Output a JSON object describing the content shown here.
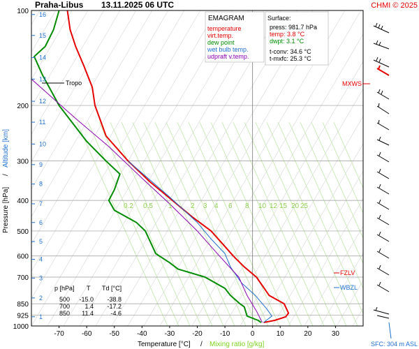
{
  "header": {
    "station": "Praha-Libus",
    "datetime": "13.11.2025 06 UTC",
    "credit": "CHMI © 2025"
  },
  "axes": {
    "ylabel_left": "Pressure [hPa]",
    "ylabel_sep": "/",
    "ylabel_right": "Altitude [km]",
    "xlabel_left": "Temperature [°C]",
    "xlabel_sep": "/",
    "xlabel_right": "Mixing ratio [g/kg]"
  },
  "legend": {
    "title": "EMAGRAM",
    "items": [
      {
        "label": "temperature",
        "color": "#e60000"
      },
      {
        "label": "virt.temp.",
        "color": "#e60000"
      },
      {
        "label": "dew point",
        "color": "#008c00"
      },
      {
        "label": "wet bulb temp.",
        "color": "#1f6fd1"
      },
      {
        "label": "udpraft v.temp.",
        "color": "#8a00b0"
      }
    ]
  },
  "surface": {
    "title": "Surface:",
    "press": "press: 981.7 hPa",
    "temp": "temp: 3.8 °C",
    "dwpt": "dwpt: 3.1 °C",
    "tconv": "t-conv: 34.6 °C",
    "tmxfc": "t-mxfc: 25.3 °C"
  },
  "table": {
    "headers": [
      "p [hPa]",
      "T",
      "Td [°C]"
    ],
    "rows": [
      [
        "500",
        "-15.0",
        "-38.8"
      ],
      [
        "700",
        "1.4",
        "-17.2"
      ],
      [
        "850",
        "11.4",
        "-4.6"
      ]
    ]
  },
  "levels": {
    "tropo": "Tropo",
    "mxws": "MXWS",
    "fzlv": "FZLV",
    "wbzl": "WBZL",
    "sfc": "SFC: 304 m ASL"
  },
  "chart_data": {
    "type": "line",
    "title": "Praha-Libus 13.11.2025 06 UTC",
    "xlabel": "Temperature [°C]",
    "ylabel": "Pressure [hPa]",
    "xlim": [
      -80,
      40
    ],
    "ylim": [
      1000,
      100
    ],
    "y_scale": "log",
    "x_ticks": [
      -70,
      -60,
      -50,
      -40,
      -30,
      -20,
      -10,
      0,
      10,
      20,
      30
    ],
    "p_ticks": [
      100,
      200,
      300,
      400,
      500,
      600,
      700,
      850,
      925,
      1000
    ],
    "km_ticks": [
      {
        "label": "1",
        "p": 935
      },
      {
        "label": "2",
        "p": 815
      },
      {
        "label": "3",
        "p": 705
      },
      {
        "label": "4",
        "p": 615
      },
      {
        "label": "5",
        "p": 540
      },
      {
        "label": "6",
        "p": 470
      },
      {
        "label": "7",
        "p": 410
      },
      {
        "label": "8",
        "p": 355
      },
      {
        "label": "9",
        "p": 308
      },
      {
        "label": "10",
        "p": 265
      },
      {
        "label": "11",
        "p": 226
      },
      {
        "label": "12",
        "p": 194
      },
      {
        "label": "13",
        "p": 165
      },
      {
        "label": "14",
        "p": 141
      },
      {
        "label": "15",
        "p": 120
      },
      {
        "label": "16",
        "p": 103
      }
    ],
    "mixing_ratio_labels": [
      "0.2",
      "0.5",
      "1",
      "2",
      "3",
      "4",
      "6",
      "8",
      "10",
      "12",
      "15",
      "20",
      "25"
    ],
    "series": [
      {
        "name": "temperature",
        "color": "#e60000",
        "points": [
          [
            4,
            975
          ],
          [
            8,
            960
          ],
          [
            12,
            935
          ],
          [
            13,
            910
          ],
          [
            11.4,
            850
          ],
          [
            6,
            800
          ],
          [
            1.4,
            700
          ],
          [
            -3,
            650
          ],
          [
            -7,
            600
          ],
          [
            -10,
            560
          ],
          [
            -15,
            500
          ],
          [
            -22,
            450
          ],
          [
            -29,
            400
          ],
          [
            -37,
            350
          ],
          [
            -45,
            300
          ],
          [
            -53,
            250
          ],
          [
            -57,
            200
          ],
          [
            -58,
            175
          ],
          [
            -61,
            150
          ],
          [
            -64,
            130
          ],
          [
            -66,
            115
          ],
          [
            -67,
            100
          ]
        ]
      },
      {
        "name": "dew point",
        "color": "#008c00",
        "points": [
          [
            3.1,
            975
          ],
          [
            2,
            960
          ],
          [
            -2,
            930
          ],
          [
            -3,
            870
          ],
          [
            -4.6,
            850
          ],
          [
            -8,
            800
          ],
          [
            -10,
            760
          ],
          [
            -17.2,
            700
          ],
          [
            -27,
            660
          ],
          [
            -30,
            630
          ],
          [
            -35,
            590
          ],
          [
            -38.8,
            500
          ],
          [
            -42,
            470
          ],
          [
            -50,
            430
          ],
          [
            -52,
            400
          ],
          [
            -50,
            370
          ],
          [
            -48,
            330
          ],
          [
            -53,
            300
          ],
          [
            -60,
            260
          ],
          [
            -70,
            200
          ],
          [
            -76,
            160
          ],
          [
            -79,
            140
          ],
          [
            -75,
            130
          ],
          [
            -72,
            115
          ],
          [
            -70,
            100
          ]
        ]
      },
      {
        "name": "wet bulb temp.",
        "color": "#1f6fd1",
        "points": [
          [
            4,
            975
          ],
          [
            7,
            930
          ],
          [
            5,
            880
          ],
          [
            1,
            800
          ],
          [
            -4,
            730
          ],
          [
            -8,
            650
          ],
          [
            -10,
            590
          ],
          [
            -15,
            530
          ],
          [
            -20,
            470
          ],
          [
            -30,
            390
          ],
          [
            -45,
            300
          ]
        ]
      },
      {
        "name": "udpraft v.temp.",
        "color": "#8a00b0",
        "points": [
          [
            3.5,
            975
          ],
          [
            1.5,
            900
          ],
          [
            -2,
            800
          ],
          [
            -5,
            700
          ],
          [
            -12,
            600
          ],
          [
            -20,
            500
          ],
          [
            -30,
            410
          ],
          [
            -40,
            340
          ],
          [
            -52,
            270
          ],
          [
            -64,
            220
          ],
          [
            -80,
            165
          ]
        ]
      }
    ]
  }
}
